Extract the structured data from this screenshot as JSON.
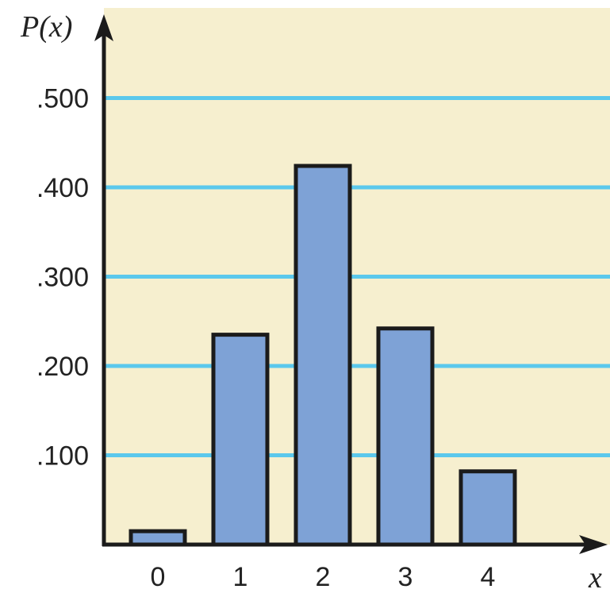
{
  "chart_data": {
    "type": "bar",
    "ylabel": "P(x)",
    "xlabel": "x",
    "categories": [
      "0",
      "1",
      "2",
      "3",
      "4"
    ],
    "values": [
      0.015,
      0.235,
      0.424,
      0.242,
      0.082
    ],
    "yticks": [
      ".100",
      ".200",
      ".300",
      ".400",
      ".500"
    ],
    "ytick_values": [
      0.1,
      0.2,
      0.3,
      0.4,
      0.5
    ],
    "ylim": [
      0,
      0.56
    ],
    "grid": true,
    "colors": {
      "background": "#f6efcf",
      "gridline": "#5bc8ec",
      "bar_fill": "#7ea2d6",
      "bar_stroke": "#1b1b1b",
      "axis": "#1b1b1b"
    }
  }
}
